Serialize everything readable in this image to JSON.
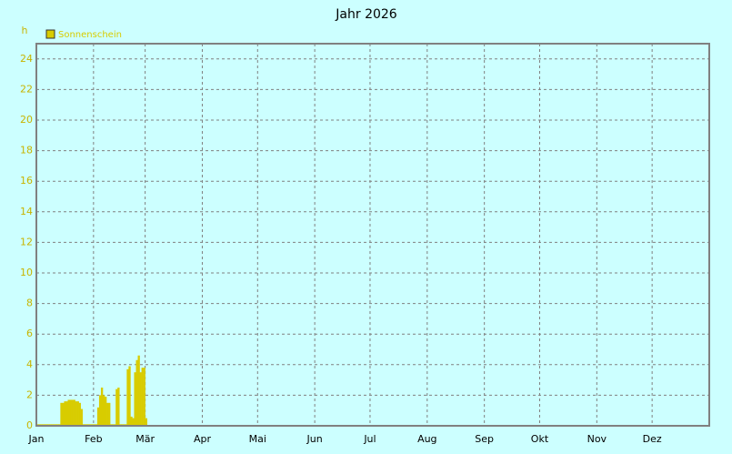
{
  "chart_data": {
    "type": "bar",
    "title": "Jahr 2026",
    "y_unit": "h",
    "series": [
      {
        "name": "Sonnenschein",
        "color": "#d8cc00",
        "x": [
          0,
          1,
          2,
          3,
          4,
          5,
          6,
          7,
          8,
          9,
          10,
          11,
          12,
          13,
          14,
          15,
          16,
          17,
          18,
          19,
          20,
          21,
          22,
          23,
          24,
          25,
          26,
          27,
          28,
          29,
          30,
          31,
          32,
          33,
          34,
          35,
          36,
          37,
          38,
          39,
          40,
          41,
          42,
          43,
          44,
          45,
          46,
          47,
          48,
          49,
          50,
          51,
          52,
          53,
          54,
          55,
          56,
          57,
          58,
          59
        ],
        "values": [
          0.1,
          0.1,
          0.1,
          0.1,
          0.1,
          0.1,
          0.1,
          0.1,
          0.1,
          0.1,
          0.1,
          0.1,
          0.1,
          1.5,
          1.5,
          1.6,
          1.6,
          1.7,
          1.7,
          1.7,
          1.7,
          1.6,
          1.6,
          1.5,
          1.1,
          0.1,
          0.1,
          0.1,
          0.1,
          0.1,
          0.1,
          0.1,
          0.1,
          1.2,
          2.0,
          2.5,
          2.0,
          1.9,
          1.5,
          1.5,
          0.1,
          0.1,
          0.1,
          2.4,
          2.5,
          0.1,
          0.1,
          0.1,
          0.1,
          3.7,
          3.9,
          0.6,
          0.5,
          3.5,
          4.3,
          4.6,
          3.5,
          3.8,
          3.8,
          0.5
        ]
      }
    ],
    "xlim": [
      0,
      365
    ],
    "xticks": [
      {
        "value": 0,
        "label": "Jan"
      },
      {
        "value": 31,
        "label": "Feb"
      },
      {
        "value": 59,
        "label": "Mär"
      },
      {
        "value": 90,
        "label": "Apr"
      },
      {
        "value": 120,
        "label": "Mai"
      },
      {
        "value": 151,
        "label": "Jun"
      },
      {
        "value": 181,
        "label": "Jul"
      },
      {
        "value": 212,
        "label": "Aug"
      },
      {
        "value": 243,
        "label": "Sep"
      },
      {
        "value": 273,
        "label": "Okt"
      },
      {
        "value": 304,
        "label": "Nov"
      },
      {
        "value": 334,
        "label": "Dez"
      }
    ],
    "ylim": [
      0,
      25
    ],
    "yticks": [
      0,
      2,
      4,
      6,
      8,
      10,
      12,
      14,
      16,
      18,
      20,
      22,
      24
    ],
    "grid": true
  }
}
